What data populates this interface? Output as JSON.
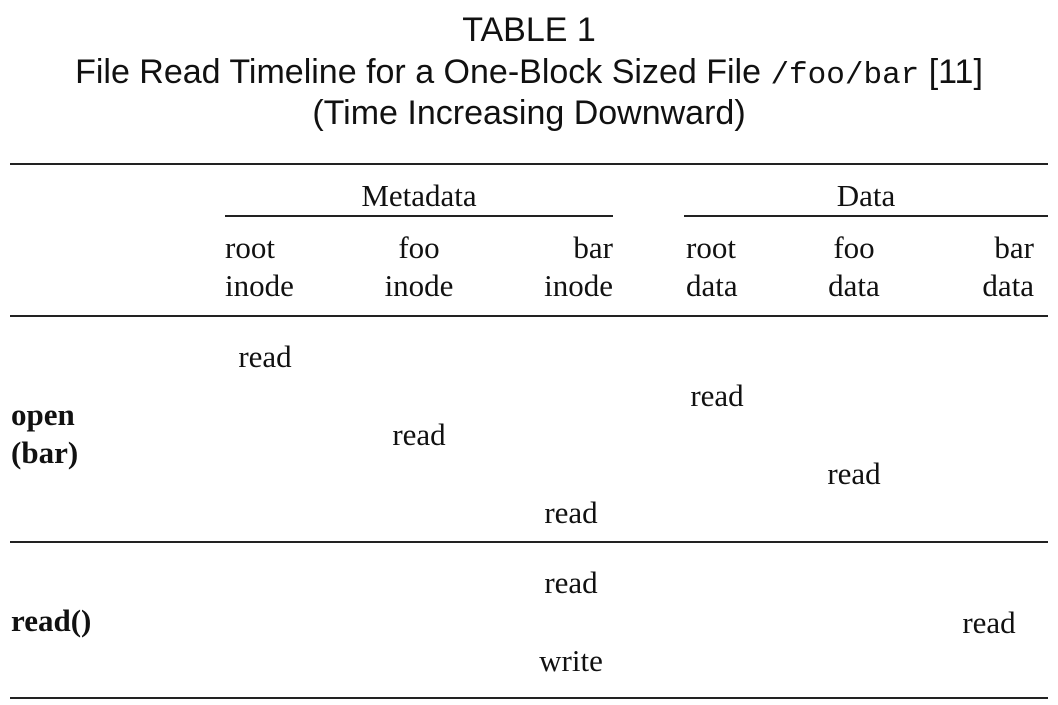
{
  "caption": {
    "line1": "TABLE 1",
    "line2_prefix": "File Read Timeline for a One-Block Sized File ",
    "line2_path": "/foo/bar",
    "line2_suffix": " [11]",
    "line3": "(Time Increasing Downward)"
  },
  "table": {
    "groups": {
      "metadata": "Metadata",
      "data": "Data"
    },
    "columns": [
      {
        "line1": "root",
        "line2": "inode"
      },
      {
        "line1": "foo",
        "line2": "inode"
      },
      {
        "line1": "bar",
        "line2": "inode"
      },
      {
        "line1": "root",
        "line2": "data"
      },
      {
        "line1": "foo",
        "line2": "data"
      },
      {
        "line1": "bar",
        "line2": "data"
      }
    ],
    "sections": [
      {
        "label_line1": "open",
        "label_line2": "(bar)",
        "events": [
          {
            "column": "root inode",
            "op": "read"
          },
          {
            "column": "root data",
            "op": "read"
          },
          {
            "column": "foo inode",
            "op": "read"
          },
          {
            "column": "foo data",
            "op": "read"
          },
          {
            "column": "bar inode",
            "op": "read"
          }
        ]
      },
      {
        "label": "read()",
        "events": [
          {
            "column": "bar inode",
            "op": "read"
          },
          {
            "column": "bar data",
            "op": "read"
          },
          {
            "column": "bar inode",
            "op": "write"
          }
        ]
      }
    ]
  }
}
